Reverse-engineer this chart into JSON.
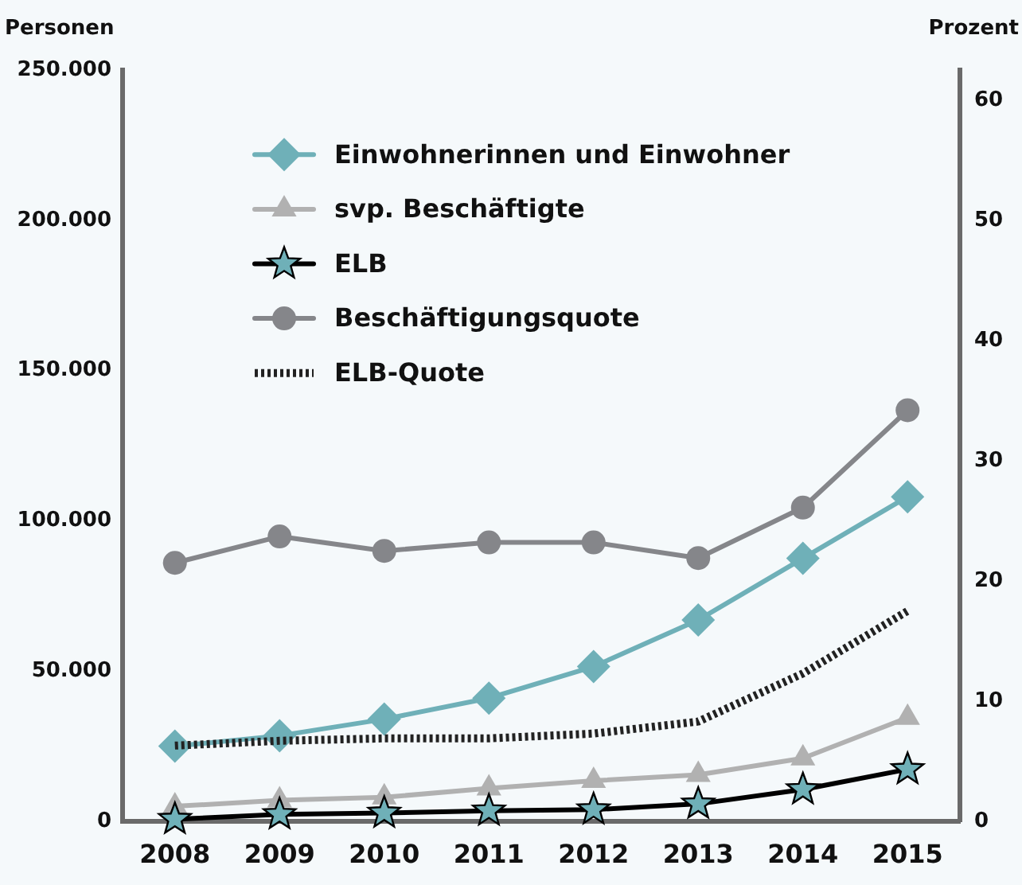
{
  "chart_data": {
    "type": "line",
    "ylabel": "Personen",
    "y2label": "Prozent",
    "categories": [
      "2008",
      "2009",
      "2010",
      "2011",
      "2012",
      "2013",
      "2014",
      "2015"
    ],
    "ylim": [
      0,
      250000
    ],
    "yticks": [
      0,
      {
        "value": 50000,
        "label": "50.000"
      },
      {
        "value": 100000,
        "label": "100.000"
      },
      {
        "value": 150000,
        "label": "150.000"
      },
      {
        "value": 200000,
        "label": "200.000"
      },
      {
        "value": 250000,
        "label": "250.000"
      }
    ],
    "y2lim": [
      0,
      62.5
    ],
    "y2ticks": [
      0,
      10,
      20,
      30,
      40,
      50,
      60
    ],
    "legend": "top left",
    "series": [
      {
        "name": "Einwohnerinnen und Einwohner",
        "color": "#6fb0b8",
        "marker": "diamond",
        "values": [
          25000,
          28500,
          34000,
          41000,
          51500,
          67000,
          87500,
          108000
        ]
      },
      {
        "name": "svp. Beschäftigte",
        "color": "#b1b1b1",
        "marker": "triangle",
        "values": [
          5000,
          7000,
          8000,
          11000,
          13500,
          15500,
          21000,
          34500
        ]
      },
      {
        "name": "ELB",
        "color": "#000000",
        "colors": [
          "#6fb0b8",
          "#6fb0b8",
          "#6fb0b8",
          "#6fb0b8",
          "#6fb0b8",
          "#6fb0b8",
          "#6fb0b8",
          "#6fb0b8"
        ],
        "marker": "star",
        "values": [
          700,
          2300,
          2800,
          3500,
          3900,
          5800,
          10600,
          17300
        ]
      },
      {
        "name": "Beschäftigungsquote",
        "color": "#85868a",
        "marker": "circle",
        "axis": "y2",
        "values": [
          21.5,
          23.7,
          22.5,
          23.2,
          23.2,
          21.9,
          26.1,
          34.2
        ]
      },
      {
        "name": "ELB-Quote",
        "color": "#222222",
        "marker": "none",
        "line_style": "dotted",
        "axis": "y2",
        "values": [
          6.3,
          6.7,
          6.9,
          6.9,
          7.3,
          8.3,
          12.3,
          17.5
        ]
      }
    ]
  }
}
